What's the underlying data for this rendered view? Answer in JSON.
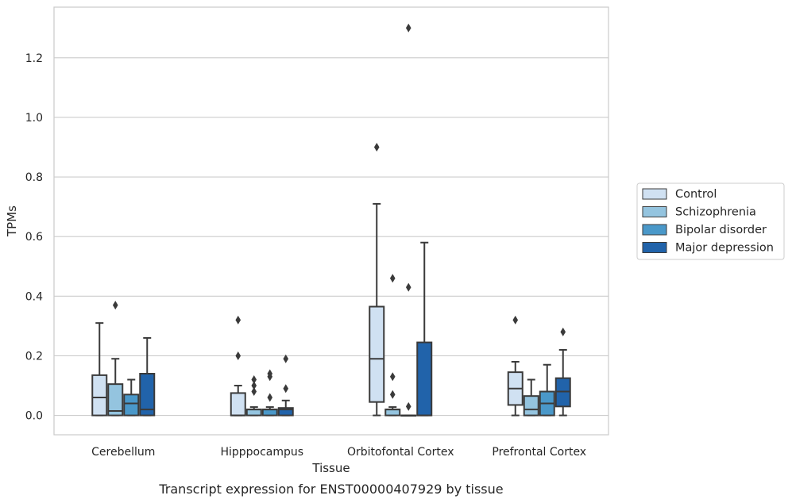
{
  "chart_data": {
    "type": "box",
    "caption": "Transcript expression for ENST00000407929 by tissue",
    "xlabel": "Tissue",
    "ylabel": "TPMs",
    "ylim": [
      -0.065,
      1.37
    ],
    "yticks": [
      0.0,
      0.2,
      0.4,
      0.6,
      0.8,
      1.0,
      1.2
    ],
    "ytick_labels": [
      "0.0",
      "0.2",
      "0.4",
      "0.6",
      "0.8",
      "1.0",
      "1.2"
    ],
    "grid": "horizontal",
    "legend_position": "right-center",
    "categories": [
      "Cerebellum",
      "Hipppocampus",
      "Orbitofontal Cortex",
      "Prefrontal Cortex"
    ],
    "series": [
      {
        "name": "Control",
        "color": "#d0e1f2",
        "boxes": [
          {
            "whislo": 0.0,
            "q1": 0.0,
            "med": 0.06,
            "q3": 0.135,
            "whishi": 0.31,
            "fliers": []
          },
          {
            "whislo": 0.0,
            "q1": 0.0,
            "med": 0.0,
            "q3": 0.075,
            "whishi": 0.1,
            "fliers": [
              0.2,
              0.32
            ]
          },
          {
            "whislo": 0.0,
            "q1": 0.045,
            "med": 0.19,
            "q3": 0.365,
            "whishi": 0.71,
            "fliers": [
              0.9
            ]
          },
          {
            "whislo": 0.0,
            "q1": 0.035,
            "med": 0.09,
            "q3": 0.145,
            "whishi": 0.18,
            "fliers": [
              0.32
            ]
          }
        ]
      },
      {
        "name": "Schizophrenia",
        "color": "#94c4df",
        "boxes": [
          {
            "whislo": 0.0,
            "q1": 0.0,
            "med": 0.015,
            "q3": 0.105,
            "whishi": 0.19,
            "fliers": [
              0.37
            ]
          },
          {
            "whislo": 0.0,
            "q1": 0.0,
            "med": 0.02,
            "q3": 0.02,
            "whishi": 0.028,
            "fliers": [
              0.08,
              0.1,
              0.12
            ]
          },
          {
            "whislo": 0.0,
            "q1": 0.0,
            "med": 0.02,
            "q3": 0.02,
            "whishi": 0.028,
            "fliers": [
              0.07,
              0.13,
              0.46
            ]
          },
          {
            "whislo": 0.0,
            "q1": 0.0,
            "med": 0.02,
            "q3": 0.065,
            "whishi": 0.12,
            "fliers": []
          }
        ]
      },
      {
        "name": "Bipolar disorder",
        "color": "#4a98c9",
        "boxes": [
          {
            "whislo": 0.0,
            "q1": 0.0,
            "med": 0.04,
            "q3": 0.07,
            "whishi": 0.12,
            "fliers": []
          },
          {
            "whislo": 0.0,
            "q1": 0.0,
            "med": 0.02,
            "q3": 0.02,
            "whishi": 0.028,
            "fliers": [
              0.06,
              0.13,
              0.14
            ]
          },
          {
            "whislo": 0.0,
            "q1": 0.0,
            "med": 0.0,
            "q3": 0.0,
            "whishi": 0.0,
            "fliers": [
              0.03,
              0.43,
              1.3
            ]
          },
          {
            "whislo": 0.0,
            "q1": 0.0,
            "med": 0.04,
            "q3": 0.08,
            "whishi": 0.17,
            "fliers": []
          }
        ]
      },
      {
        "name": "Major depression",
        "color": "#2163aa",
        "boxes": [
          {
            "whislo": 0.0,
            "q1": 0.0,
            "med": 0.02,
            "q3": 0.14,
            "whishi": 0.26,
            "fliers": []
          },
          {
            "whislo": 0.0,
            "q1": 0.0,
            "med": 0.02,
            "q3": 0.025,
            "whishi": 0.05,
            "fliers": [
              0.09,
              0.19
            ]
          },
          {
            "whislo": 0.0,
            "q1": 0.0,
            "med": 0.0,
            "q3": 0.245,
            "whishi": 0.58,
            "fliers": []
          },
          {
            "whislo": 0.0,
            "q1": 0.03,
            "med": 0.08,
            "q3": 0.125,
            "whishi": 0.22,
            "fliers": [
              0.28
            ]
          }
        ]
      }
    ]
  }
}
